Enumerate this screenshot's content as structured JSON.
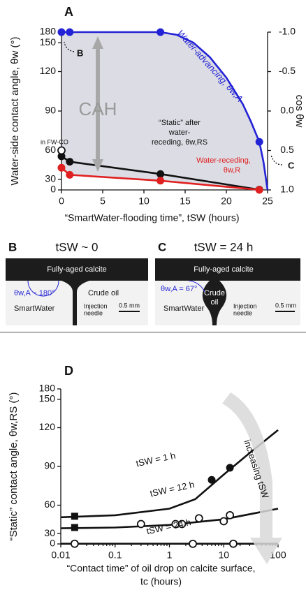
{
  "chart_data": [
    {
      "type": "line",
      "title": "A",
      "xlabel": "“SmartWater-flooding time”, tSW (hours)",
      "ylabel": "Water-side contact angle, θw (°)",
      "y2label": "cos θw",
      "xlim": [
        0,
        25
      ],
      "xticks": [
        0,
        5,
        10,
        15,
        20,
        25
      ],
      "ylim": [
        0,
        180
      ],
      "yticks": [
        0,
        30,
        60,
        90,
        120,
        150,
        180
      ],
      "yscale": "cosine",
      "y2lim": [
        -1,
        1
      ],
      "y2_inverted": true,
      "y2ticks": [
        {
          "value": -1,
          "label": "-1.0"
        },
        {
          "value": -0.5,
          "label": "-0.5"
        },
        {
          "value": 0,
          "label": "0.0"
        },
        {
          "value": 0.5,
          "label": "0.5"
        },
        {
          "value": 1,
          "label": "1.0"
        }
      ],
      "series": [
        {
          "color": "#2323d6",
          "marker": "circle",
          "x": [
            0,
            1,
            12,
            24
          ],
          "values": [
            180,
            180,
            180,
            67
          ],
          "fit": {
            "x": [
              0,
              12,
              14,
              16,
              18,
              20,
              22,
              23,
              24,
              24.5,
              25
            ],
            "values": [
              180,
              180,
              165,
              150,
              133,
              115,
              95,
              82,
              67,
              50,
              0
            ]
          }
        },
        {
          "color": "#111111",
          "marker": "circle",
          "x": [
            0,
            1,
            12,
            24
          ],
          "values": [
            55,
            50,
            37,
            5
          ],
          "fit": {
            "x": [
              0,
              1,
              12,
              24
            ],
            "values": [
              55,
              50,
              37,
              5
            ]
          }
        },
        {
          "color": "#e02020",
          "marker": "circle",
          "x": [
            0,
            1,
            12,
            24
          ],
          "values": [
            44,
            36,
            28,
            3
          ],
          "fit": {
            "x": [
              0,
              1,
              12,
              24
            ],
            "values": [
              44,
              36,
              28,
              3
            ]
          }
        },
        {
          "color": "#111111",
          "marker": "open-circle",
          "x": [
            0
          ],
          "values": [
            60
          ]
        }
      ],
      "annotations": [
        "CAH",
        "Water-advancing, θw,A",
        "“Static” after",
        "water-",
        "receding, θw,RS",
        "Water-receding,",
        "θw,R",
        "in FW-CO",
        "B",
        "C"
      ]
    },
    {
      "type": "line",
      "title": "D",
      "xlabel": [
        "“Contact time” of oil drop on calcite surface,",
        "tc (hours)"
      ],
      "ylabel": "“Static” contact angle, θw,RS (°)",
      "xlim": [
        0.01,
        100
      ],
      "xticks": [
        0.01,
        0.1,
        1,
        10,
        100
      ],
      "xscale": "log",
      "ylim": [
        0,
        180
      ],
      "yticks": [
        0,
        30,
        60,
        90,
        120,
        150,
        180
      ],
      "yscale": "cosine",
      "series": [
        {
          "name": "tSW = 1 h",
          "color": "#111111",
          "marker": "circle",
          "x": [
            6,
            13
          ],
          "values": [
            80,
            89
          ],
          "fit": {
            "x": [
              0.01,
              0.1,
              1,
              3,
              10,
              30,
              100
            ],
            "values": [
              49,
              51,
              57,
              65,
              84,
              100,
              118
            ]
          }
        },
        {
          "name": "tSW = 12 h",
          "color": "#111111",
          "marker": "open-circle",
          "x": [
            0.3,
            1.3,
            1.7,
            3.5,
            10,
            13
          ],
          "values": [
            42,
            42,
            42,
            48,
            45,
            51
          ],
          "fit": {
            "x": [
              0.01,
              0.1,
              1,
              10,
              100
            ],
            "values": [
              37,
              38,
              41,
              47,
              57
            ]
          }
        },
        {
          "name": "tSW = 24 h",
          "color": "#111111",
          "marker": "open-circle",
          "x": [
            0.018,
            2.7,
            15
          ],
          "values": [
            4,
            3,
            4
          ],
          "fit": {
            "x": [
              0.01,
              100
            ],
            "values": [
              4,
              4
            ]
          }
        },
        {
          "color": "#111111",
          "marker": "square",
          "x": [
            0.018,
            0.018
          ],
          "values": [
            50,
            38
          ]
        }
      ],
      "annotations": [
        "increasing tSW"
      ]
    }
  ],
  "photos": [
    {
      "panel": "B",
      "title": "tSW ~ 0",
      "labels": [
        "Fully-aged calcite",
        "θw,A ~ 180°",
        "Crude oil",
        "SmartWater",
        "Injection",
        "needle",
        "0.5 mm"
      ]
    },
    {
      "panel": "C",
      "title": "tSW = 24 h",
      "labels": [
        "Fully-aged calcite",
        "θw,A = 67°",
        "Crude",
        "oil",
        "SmartWater",
        "Injection",
        "needle",
        "0.5 mm"
      ]
    }
  ]
}
